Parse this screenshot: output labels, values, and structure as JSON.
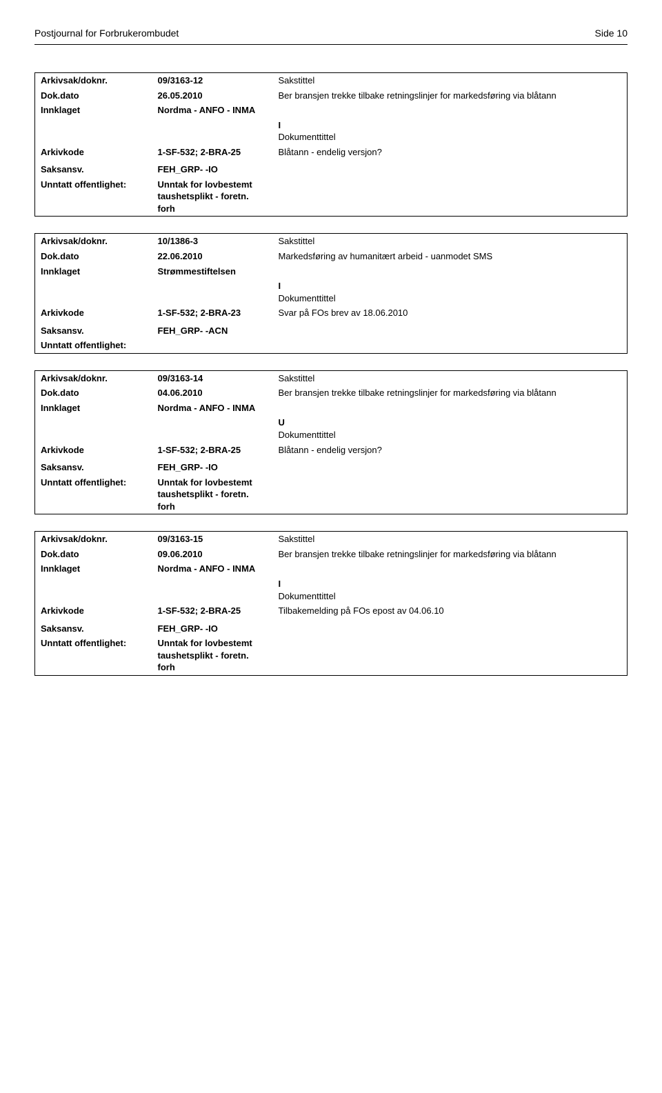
{
  "header": {
    "title": "Postjournal for Forbrukerombudet",
    "page_label": "Side 10"
  },
  "records": [
    {
      "arkivsak_doknr": "09/3163-12",
      "sakstittel_label": "Sakstittel",
      "dok_dato": "26.05.2010",
      "sakstittel": "Ber bransjen trekke tilbake retningslinjer for markedsføring via blåtann",
      "innklaget": "Nordma - ANFO - INMA",
      "direction": "I",
      "dokumenttittel_label": "Dokumenttittel",
      "arkivkode": "1-SF-532; 2-BRA-25",
      "dokumenttittel": "Blåtann - endelig versjon?",
      "saksansv": "FEH_GRP- -IO",
      "unntatt": "Unntak for lovbestemt taushetsplikt - foretn. forh"
    },
    {
      "arkivsak_doknr": "10/1386-3",
      "sakstittel_label": "Sakstittel",
      "dok_dato": "22.06.2010",
      "sakstittel": "Markedsføring av humanitært arbeid - uanmodet SMS",
      "innklaget": "Strømmestiftelsen",
      "direction": "I",
      "dokumenttittel_label": "Dokumenttittel",
      "arkivkode": "1-SF-532; 2-BRA-23",
      "dokumenttittel": "Svar på FOs brev av 18.06.2010",
      "saksansv": "FEH_GRP- -ACN",
      "unntatt": ""
    },
    {
      "arkivsak_doknr": "09/3163-14",
      "sakstittel_label": "Sakstittel",
      "dok_dato": "04.06.2010",
      "sakstittel": "Ber bransjen trekke tilbake retningslinjer for markedsføring via blåtann",
      "innklaget": "Nordma - ANFO - INMA",
      "direction": "U",
      "dokumenttittel_label": "Dokumenttittel",
      "arkivkode": "1-SF-532; 2-BRA-25",
      "dokumenttittel": "Blåtann - endelig versjon?",
      "saksansv": "FEH_GRP- -IO",
      "unntatt": "Unntak for lovbestemt taushetsplikt - foretn. forh"
    },
    {
      "arkivsak_doknr": "09/3163-15",
      "sakstittel_label": "Sakstittel",
      "dok_dato": "09.06.2010",
      "sakstittel": "Ber bransjen trekke tilbake retningslinjer for markedsføring via blåtann",
      "innklaget": "Nordma - ANFO - INMA",
      "direction": "I",
      "dokumenttittel_label": "Dokumenttittel",
      "arkivkode": "1-SF-532; 2-BRA-25",
      "dokumenttittel": "Tilbakemelding på FOs epost av 04.06.10",
      "saksansv": "FEH_GRP- -IO",
      "unntatt": "Unntak for lovbestemt taushetsplikt - foretn. forh"
    }
  ],
  "labels": {
    "arkivsak_doknr": "Arkivsak/doknr.",
    "dok_dato": "Dok.dato",
    "innklaget": "Innklaget",
    "arkivkode": "Arkivkode",
    "saksansv": "Saksansv.",
    "unntatt": "Unntatt offentlighet:"
  }
}
